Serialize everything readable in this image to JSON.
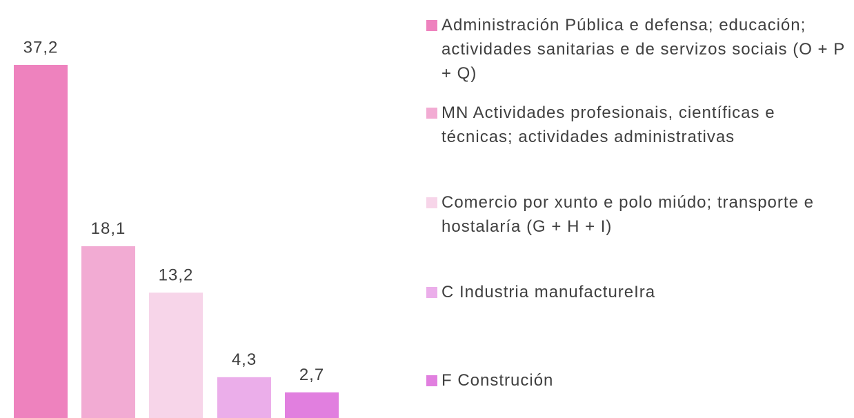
{
  "chart_data": {
    "type": "bar",
    "categories": [
      "Administración Pública e defensa; educación; actividades sanitarias e de servizos sociais (O + P + Q)",
      "MN Actividades profesionais, científicas e técnicas; actividades administrativas",
      "Comercio por xunto e polo miúdo; transporte e hostalaría (G + H + I)",
      "C Industria manufactureIra",
      "F Construción"
    ],
    "values": [
      37.2,
      18.1,
      13.2,
      4.3,
      2.7
    ],
    "value_labels": [
      "37,2",
      "18,1",
      "13,2",
      "4,3",
      "2,7"
    ],
    "colors": [
      "#ee82be",
      "#f2abd3",
      "#f7d5e9",
      "#ebaeea",
      "#e17fdf"
    ],
    "legend": "right"
  }
}
